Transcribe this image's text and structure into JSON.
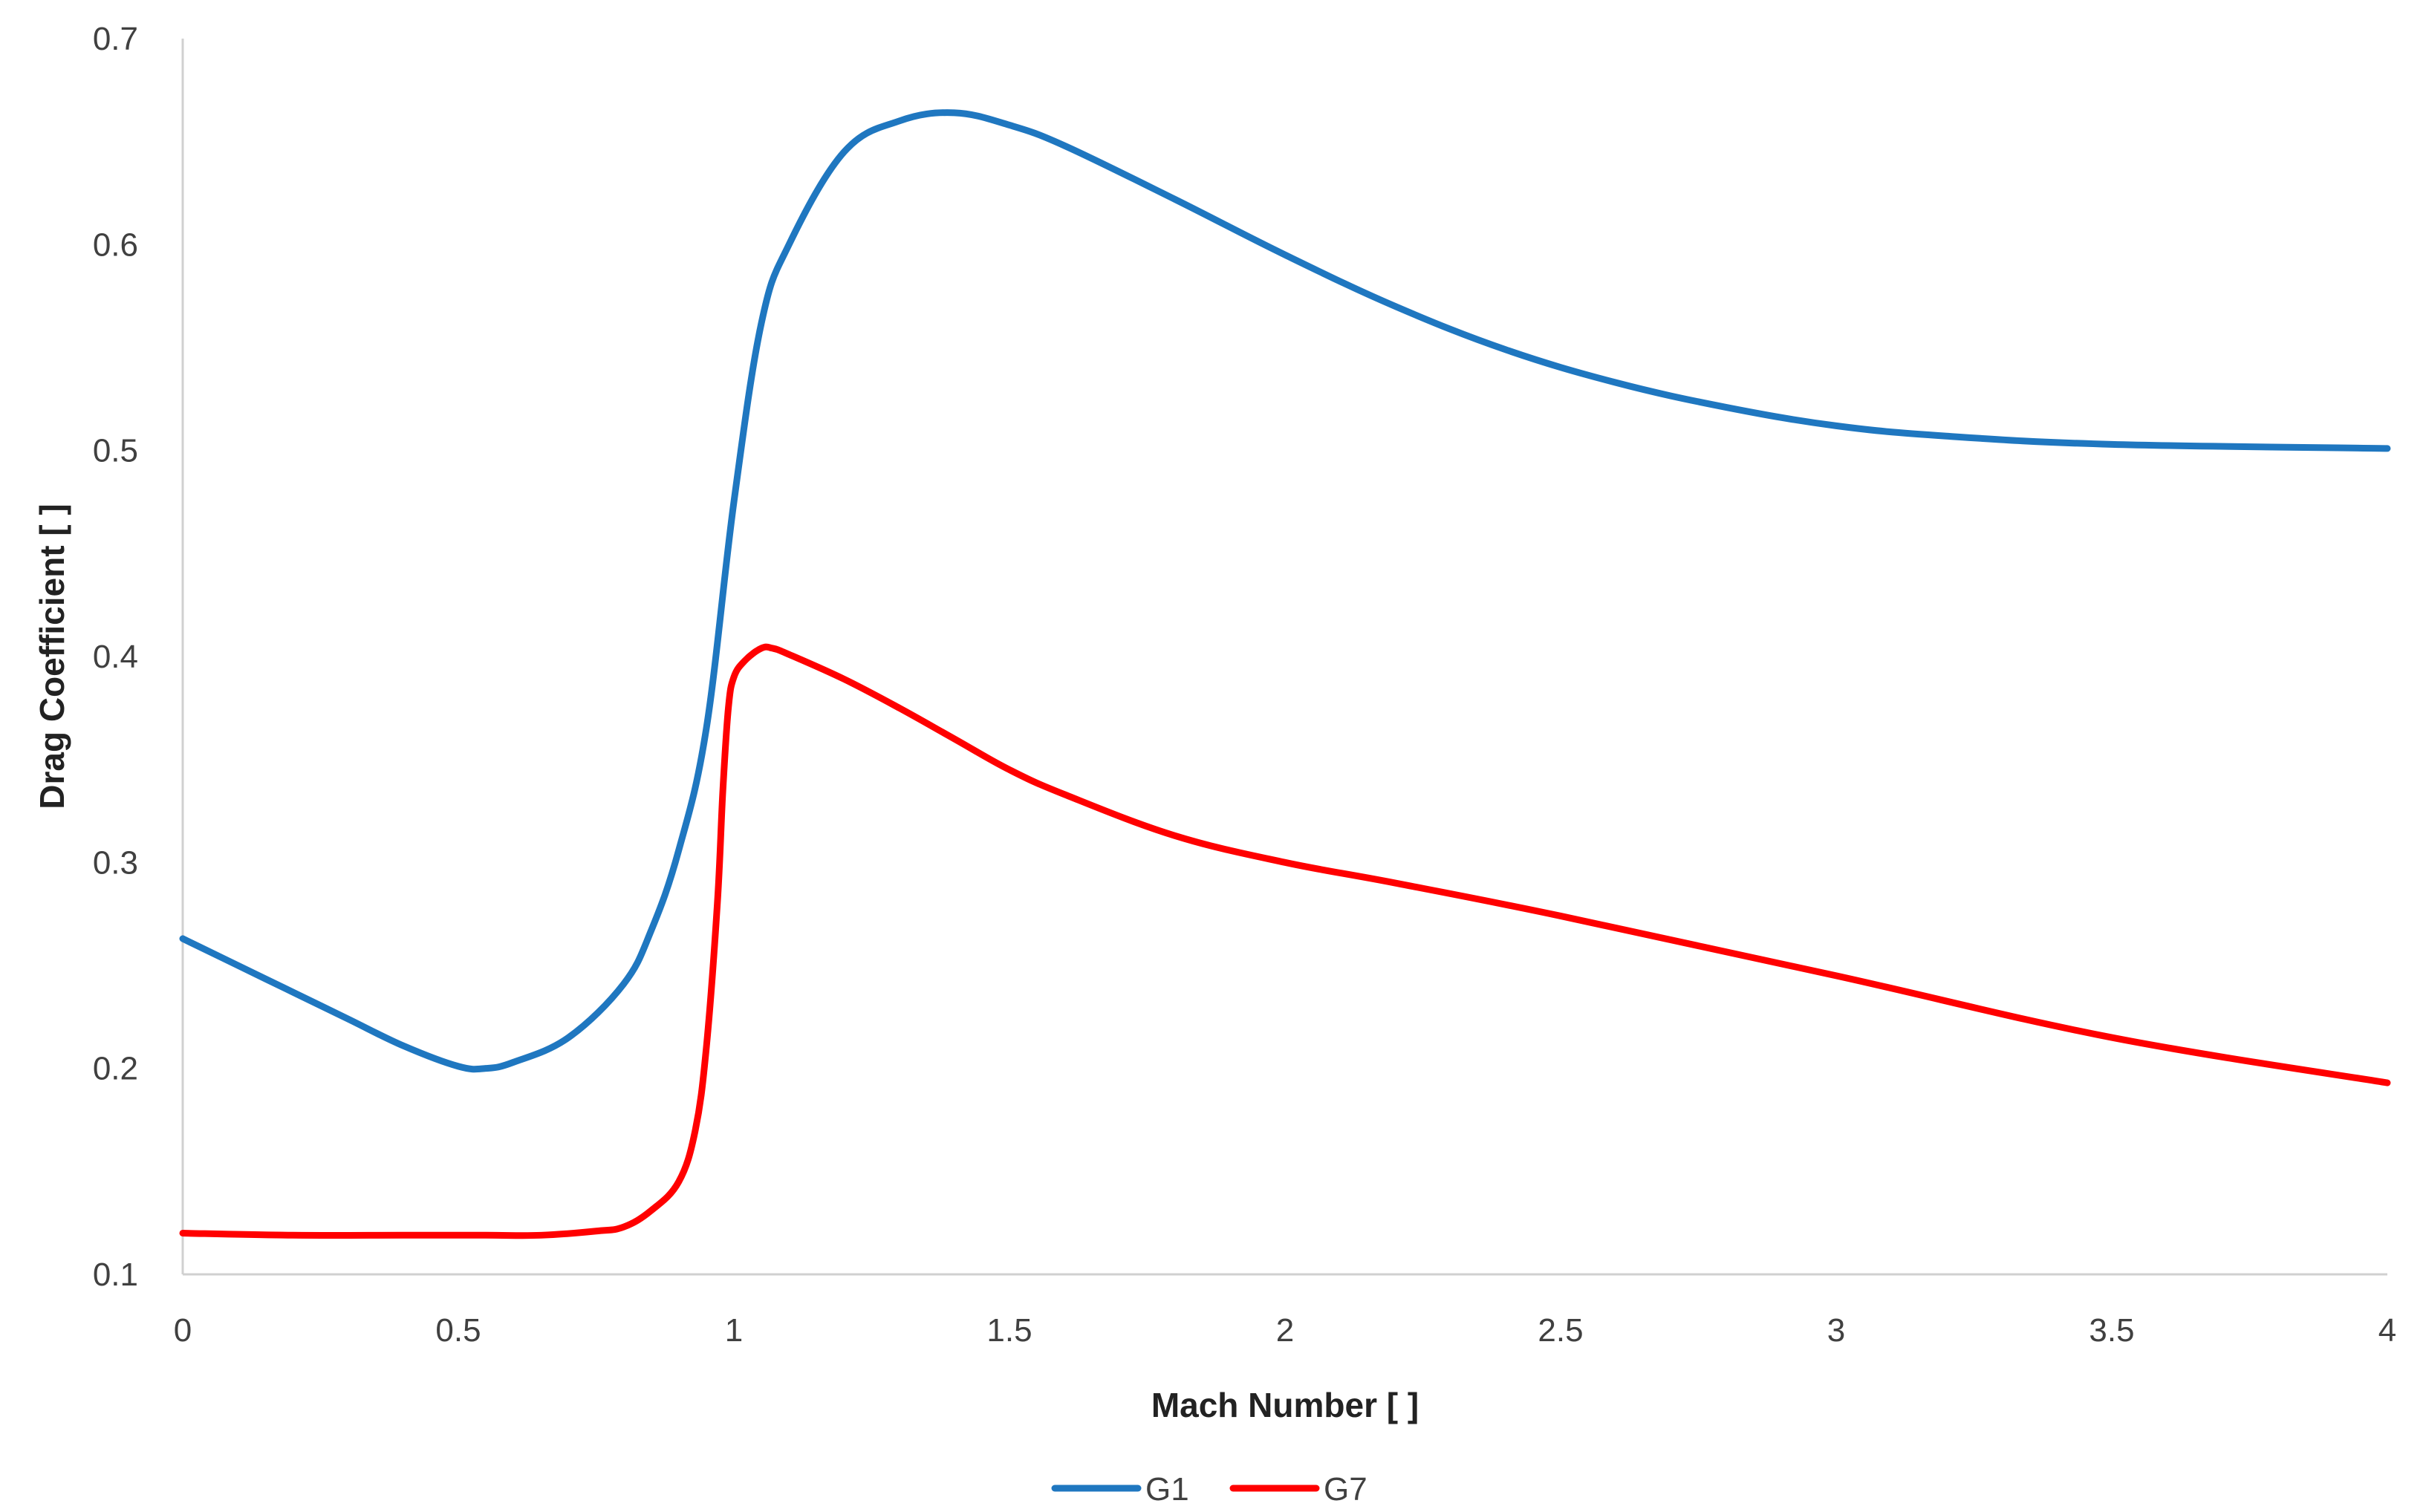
{
  "chart_data": {
    "type": "line",
    "xlabel": "Mach Number [ ]",
    "ylabel": "Drag Coefficient [ ]",
    "xlim": [
      0,
      4
    ],
    "ylim": [
      0.1,
      0.7
    ],
    "x_ticks": [
      0,
      0.5,
      1,
      1.5,
      2,
      2.5,
      3,
      3.5,
      4
    ],
    "x_tick_labels": [
      "0",
      "0.5",
      "1",
      "1.5",
      "2",
      "2.5",
      "3",
      "3.5",
      "4"
    ],
    "y_ticks": [
      0.1,
      0.2,
      0.3,
      0.4,
      0.5,
      0.6,
      0.7
    ],
    "y_tick_labels": [
      "0.1",
      "0.2",
      "0.3",
      "0.4",
      "0.5",
      "0.6",
      "0.7"
    ],
    "grid": false,
    "legend_position": "bottom-center",
    "series": [
      {
        "name": "G1",
        "color": "#1f77c0",
        "x": [
          0,
          0.1,
          0.2,
          0.3,
          0.4,
          0.5,
          0.55,
          0.6,
          0.7,
          0.8,
          0.85,
          0.9,
          0.95,
          1.0,
          1.05,
          1.1,
          1.2,
          1.3,
          1.4,
          1.5,
          1.6,
          1.8,
          2.0,
          2.2,
          2.4,
          2.6,
          2.8,
          3.0,
          3.2,
          3.5,
          4.0
        ],
        "y": [
          0.263,
          0.25,
          0.237,
          0.224,
          0.211,
          0.201,
          0.2,
          0.203,
          0.215,
          0.241,
          0.267,
          0.306,
          0.365,
          0.475,
          0.562,
          0.6,
          0.645,
          0.66,
          0.664,
          0.658,
          0.648,
          0.622,
          0.595,
          0.57,
          0.549,
          0.533,
          0.521,
          0.512,
          0.507,
          0.503,
          0.501
        ]
      },
      {
        "name": "G7",
        "color": "#ff0000",
        "x": [
          0,
          0.2,
          0.4,
          0.55,
          0.65,
          0.75,
          0.8,
          0.85,
          0.9,
          0.93,
          0.95,
          0.97,
          0.98,
          0.99,
          1.0,
          1.02,
          1.05,
          1.07,
          1.1,
          1.2,
          1.3,
          1.4,
          1.5,
          1.6,
          1.8,
          2.0,
          2.2,
          2.5,
          3.0,
          3.5,
          4.0
        ],
        "y": [
          0.12,
          0.119,
          0.119,
          0.119,
          0.119,
          0.121,
          0.123,
          0.131,
          0.145,
          0.17,
          0.21,
          0.28,
          0.335,
          0.375,
          0.39,
          0.398,
          0.404,
          0.404,
          0.401,
          0.389,
          0.375,
          0.36,
          0.345,
          0.333,
          0.313,
          0.3,
          0.29,
          0.274,
          0.245,
          0.215,
          0.193
        ]
      }
    ]
  }
}
